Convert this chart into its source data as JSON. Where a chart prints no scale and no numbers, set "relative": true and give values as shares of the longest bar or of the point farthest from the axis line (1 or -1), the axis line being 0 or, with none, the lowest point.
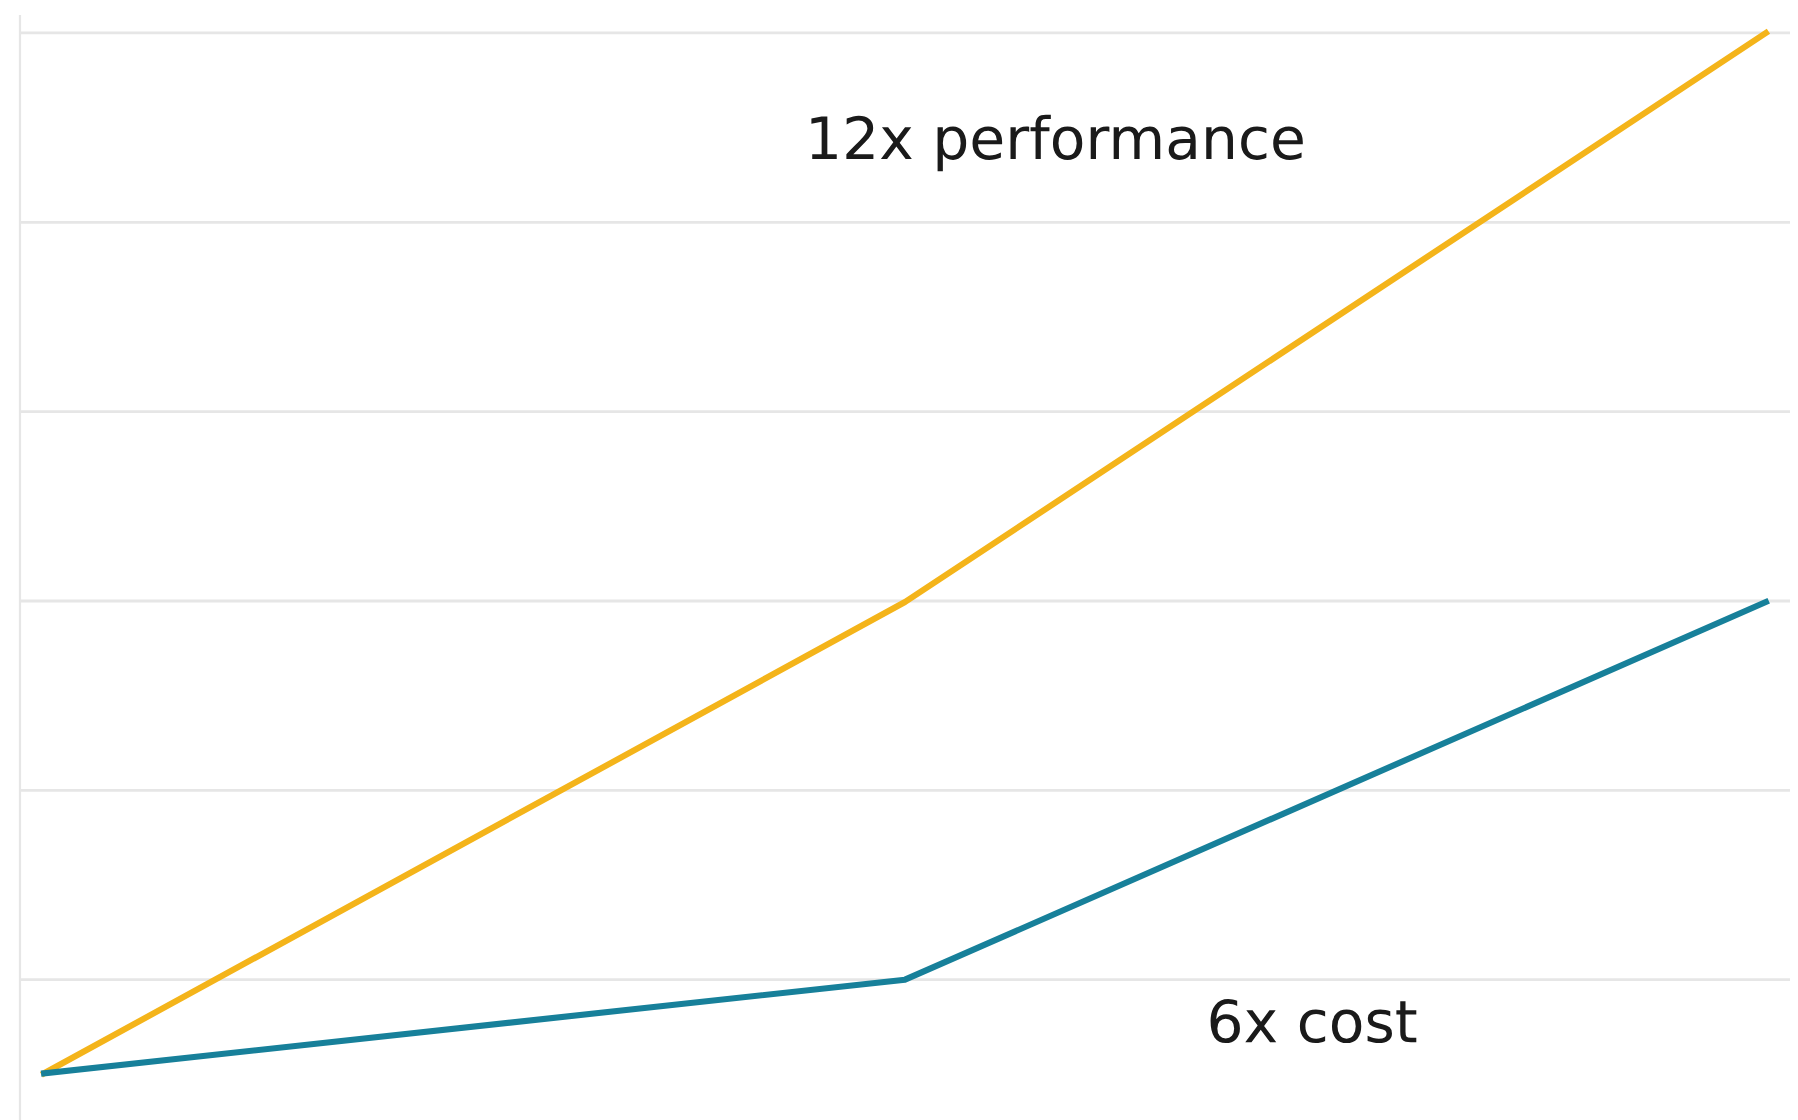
{
  "chart_data": {
    "type": "line",
    "relative": true,
    "categories": [
      null,
      null,
      null
    ],
    "series": [
      {
        "name": "12x performance",
        "color": "#f4b41a",
        "values": [
          0,
          0.453,
          1
        ]
      },
      {
        "name": "6x cost",
        "color": "#17809a",
        "values": [
          0,
          0.09,
          0.453
        ]
      }
    ],
    "grid": "y",
    "legend": false,
    "marker": "none",
    "line_style": "solid"
  }
}
